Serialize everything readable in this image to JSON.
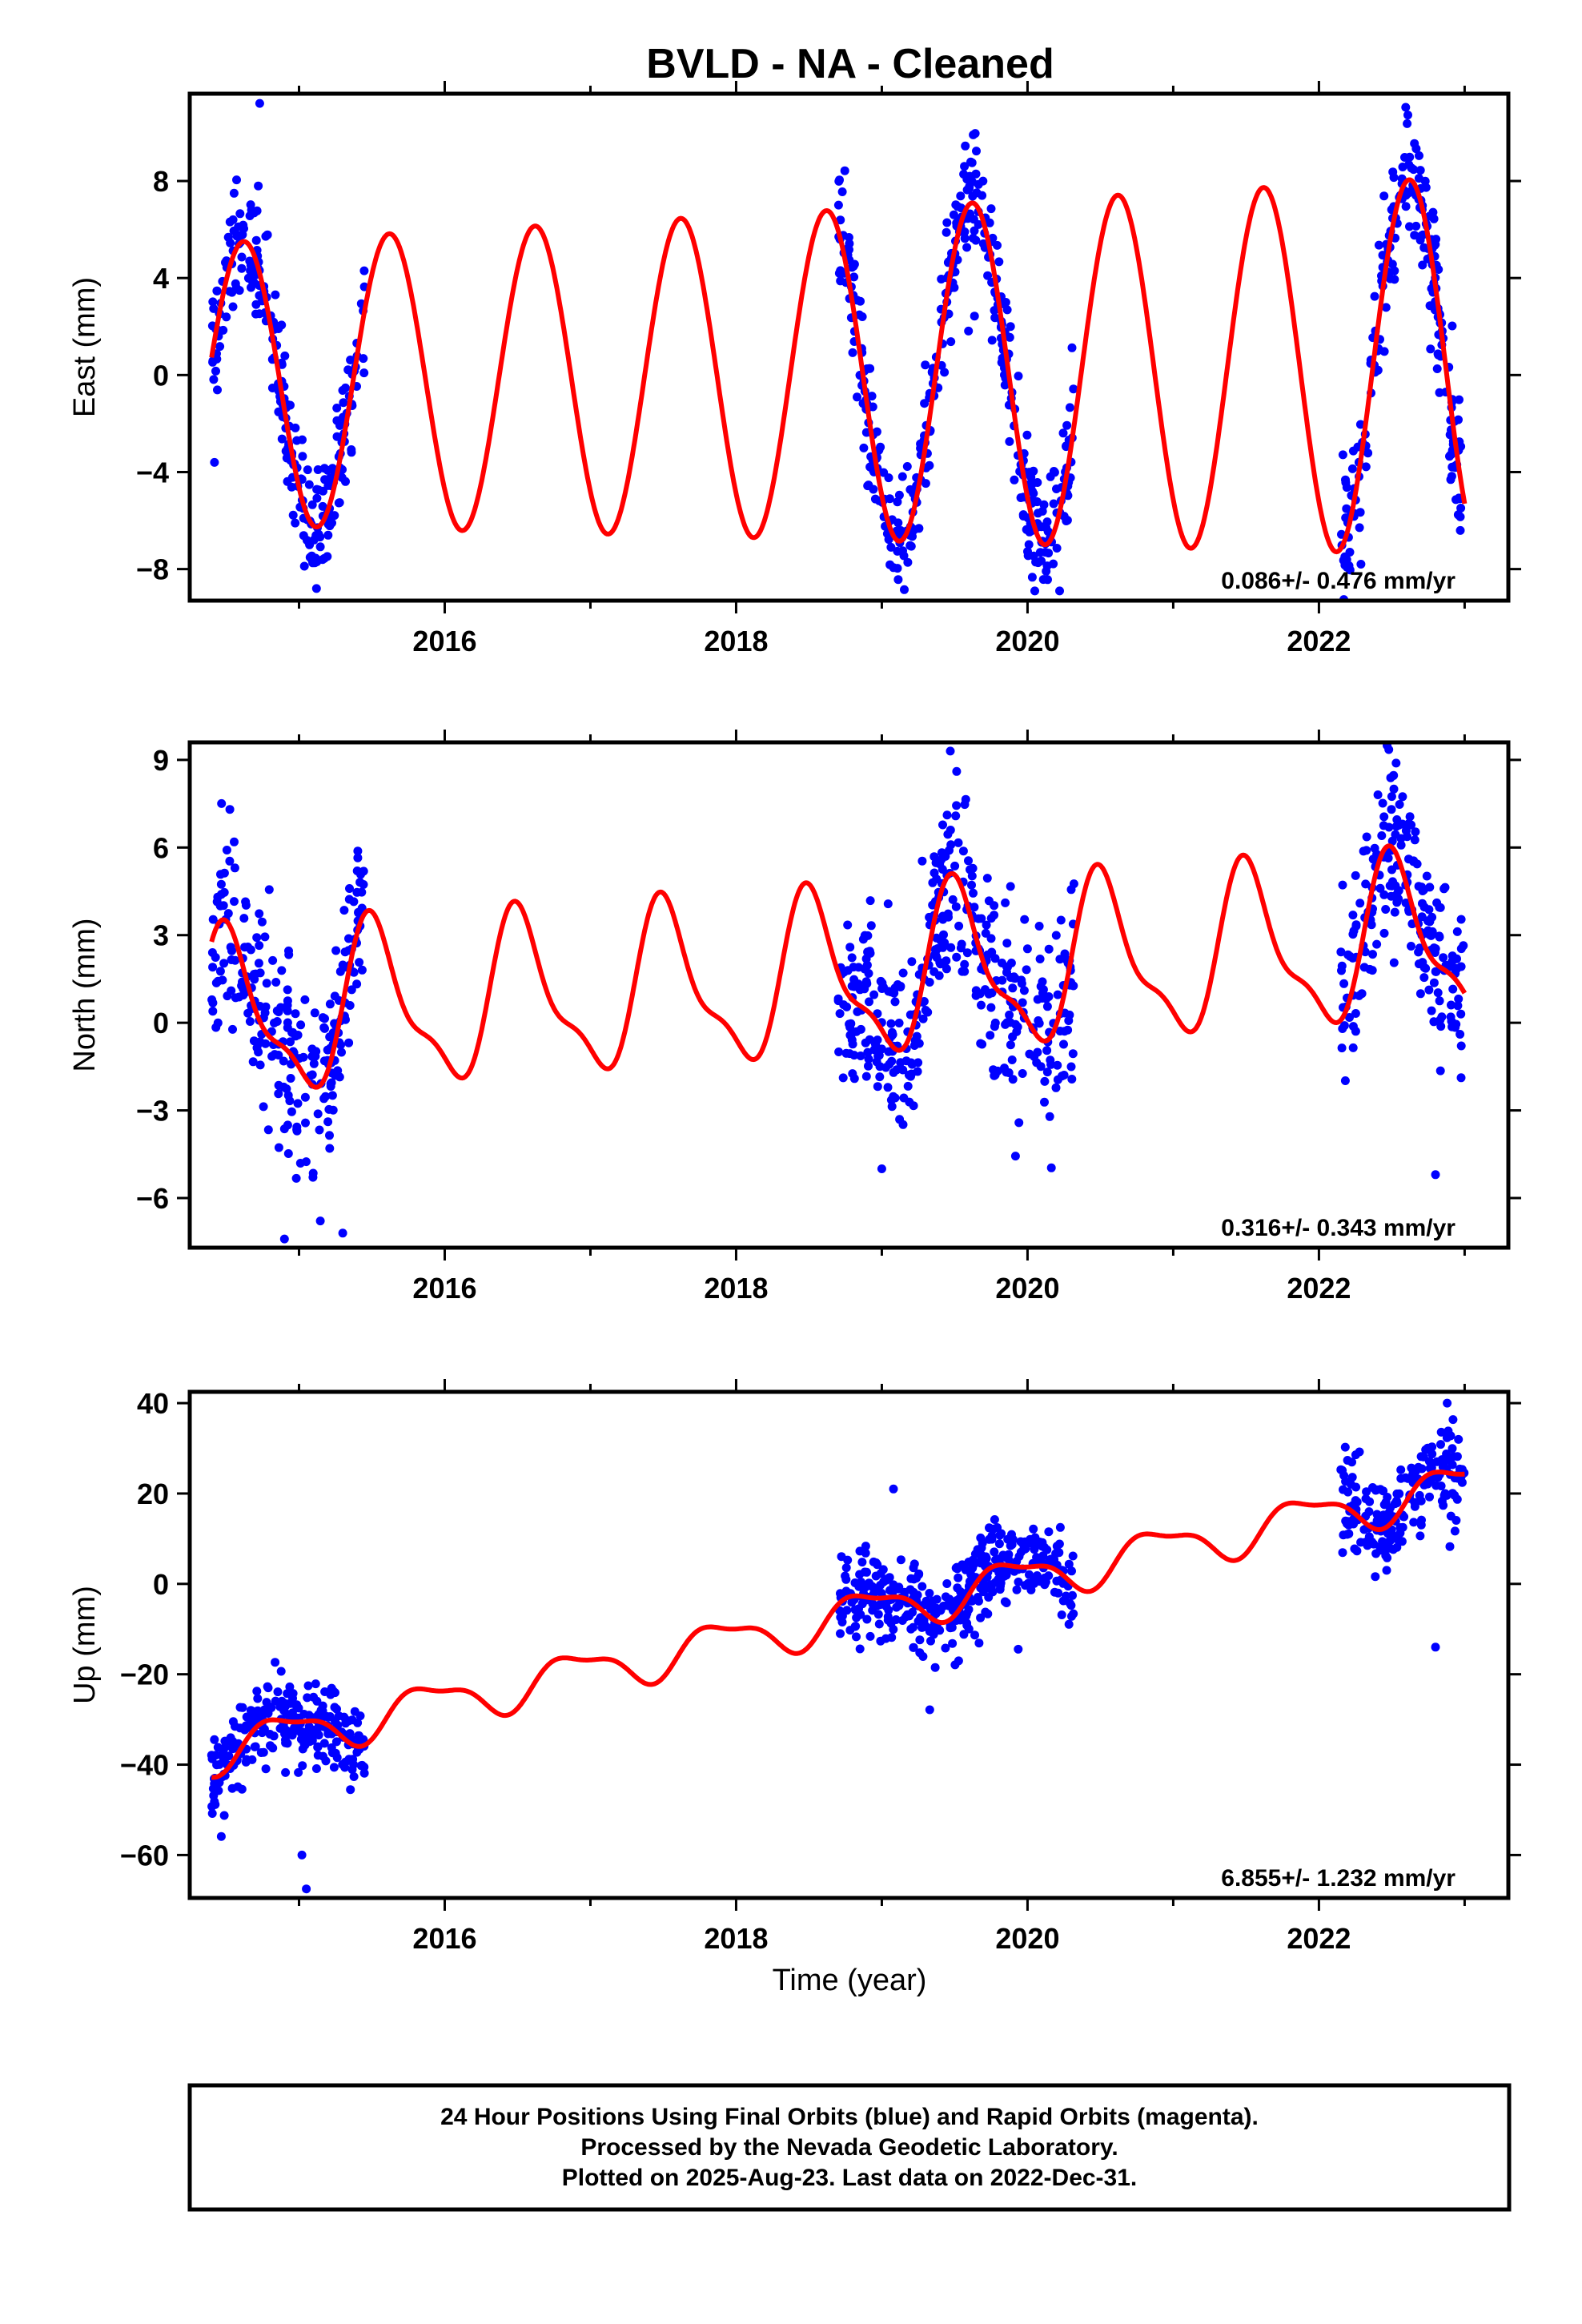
{
  "title": "BVLD  - NA - Cleaned",
  "xlabel": "Time (year)",
  "footer": {
    "line1": "24 Hour Positions Using Final Orbits (blue) and Rapid Orbits (magenta).",
    "line2": "Processed by the Nevada Geodetic Laboratory.",
    "line3": "Plotted on 2025-Aug-23. Last data on 2022-Dec-31."
  },
  "colors": {
    "points": "#0000ff",
    "model": "#ff0000",
    "frame": "#000000"
  },
  "chart_data": [
    {
      "type": "scatter",
      "panel": "east",
      "ylabel": "East (mm)",
      "xlim": [
        2014.25,
        2023.3
      ],
      "ylim": [
        -9.3,
        11.6
      ],
      "xticks": [
        2016,
        2018,
        2020,
        2022
      ],
      "xtick_labels": [
        "2016",
        "2018",
        "2020",
        "2022"
      ],
      "yticks": [
        -8,
        -4,
        0,
        4,
        8
      ],
      "ytick_labels": [
        "−8",
        "−4",
        "0",
        "4",
        "8"
      ],
      "rate": "0.086+/- 0.476 mm/yr",
      "data_intervals": [
        [
          2014.4,
          2015.45
        ],
        [
          2018.7,
          2020.32
        ],
        [
          2022.15,
          2023.0
        ]
      ],
      "model": {
        "offset": 0.0,
        "slope": 0.086,
        "ref": 2018.6,
        "annual_amp": 5.8,
        "annual_peak": 2014.62,
        "semi_amp": 0.0,
        "semi_phase": 0.0,
        "amp_growth": 0.04
      },
      "scatter_sd": 1.3,
      "outliers": [
        [
          2014.73,
          11.2
        ],
        [
          2015.12,
          -8.8
        ],
        [
          2020.05,
          -8.9
        ],
        [
          2020.22,
          -8.9
        ],
        [
          2014.42,
          -3.6
        ]
      ],
      "x_range": [
        2014.4,
        2023.0
      ]
    },
    {
      "type": "scatter",
      "panel": "north",
      "ylabel": "North (mm)",
      "xlim": [
        2014.25,
        2023.3
      ],
      "ylim": [
        -7.7,
        9.6
      ],
      "xticks": [
        2016,
        2018,
        2020,
        2022
      ],
      "xtick_labels": [
        "2016",
        "2018",
        "2020",
        "2022"
      ],
      "yticks": [
        -6,
        -3,
        0,
        3,
        6,
        9
      ],
      "ytick_labels": [
        "−6",
        "−3",
        "0",
        "3",
        "6",
        "9"
      ],
      "rate": "0.316+/- 0.343 mm/yr",
      "data_intervals": [
        [
          2014.4,
          2015.45
        ],
        [
          2018.7,
          2020.32
        ],
        [
          2022.15,
          2023.0
        ]
      ],
      "model": {
        "offset": 0.15,
        "slope": 0.316,
        "ref": 2014.4,
        "annual_amp": 2.6,
        "annual_peak": 2014.52,
        "semi_amp": 0.9,
        "semi_phase": 2014.45,
        "amp_growth": 0.0
      },
      "scatter_sd": 1.6,
      "outliers": [
        [
          2019.47,
          9.3
        ],
        [
          2014.9,
          -7.4
        ],
        [
          2015.3,
          -7.2
        ],
        [
          2022.8,
          -5.2
        ],
        [
          2019.0,
          -5.0
        ]
      ],
      "x_range": [
        2014.4,
        2023.0
      ]
    },
    {
      "type": "scatter",
      "panel": "up",
      "ylabel": "Up (mm)",
      "xlim": [
        2014.25,
        2023.3
      ],
      "ylim": [
        -69.5,
        42.5
      ],
      "xticks": [
        2016,
        2018,
        2020,
        2022
      ],
      "xtick_labels": [
        "2016",
        "2018",
        "2020",
        "2022"
      ],
      "yticks": [
        -60,
        -40,
        -20,
        0,
        20,
        40
      ],
      "ytick_labels": [
        "−60",
        "−40",
        "−20",
        "0",
        "20",
        "40"
      ],
      "rate": "6.855+/- 1.232 mm/yr",
      "data_intervals": [
        [
          2014.4,
          2015.45
        ],
        [
          2018.7,
          2020.32
        ],
        [
          2022.15,
          2023.0
        ]
      ],
      "model": {
        "offset": -37.0,
        "slope": 6.855,
        "ref": 2014.4,
        "annual_amp": 4.5,
        "annual_peak": 2014.9,
        "semi_amp": 1.6,
        "semi_phase": 2014.7,
        "amp_growth": 0.0
      },
      "scatter_sd": 5.0,
      "outliers": [
        [
          2015.05,
          -67.5
        ],
        [
          2022.88,
          40.0
        ],
        [
          2019.08,
          21.0
        ],
        [
          2022.8,
          -14.0
        ],
        [
          2015.02,
          -60.0
        ]
      ],
      "x_range": [
        2014.4,
        2023.0
      ]
    }
  ]
}
